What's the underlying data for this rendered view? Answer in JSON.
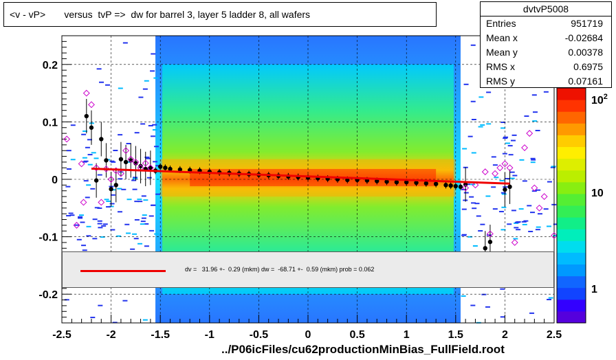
{
  "title": "<v - vP>       versus  tvP =>  dw for barrel 3, layer 5 ladder 8, all wafers",
  "stats": {
    "name": "dvtvP5008",
    "rows": [
      {
        "label": "Entries",
        "value": "951719"
      },
      {
        "label": "Mean x",
        "value": "-0.02684"
      },
      {
        "label": "Mean y",
        "value": "0.00378"
      },
      {
        "label": "RMS x",
        "value": "0.6975"
      },
      {
        "label": "RMS y",
        "value": "0.07161"
      }
    ]
  },
  "fit_text": "dv =   31.96 +-  0.29 (mkm) dw =  -68.71 +-  0.59 (mkm) prob = 0.062",
  "footer": "../P06icFiles/cu62productionMinBias_FullField.root",
  "colors": {
    "fit_line": "#ee0000",
    "profile_marker": "#000000",
    "open_marker": "#cc00cc"
  },
  "chart_data": {
    "type": "heatmap",
    "xlim": [
      -2.5,
      2.5
    ],
    "ylim": [
      -0.25,
      0.25
    ],
    "x_ticks": [
      "-2.5",
      "-2",
      "-1.5",
      "-1",
      "-0.5",
      "0",
      "0.5",
      "1",
      "1.5",
      "2",
      "2.5"
    ],
    "y_ticks": [
      "-0.2",
      "-0.1",
      "0",
      "0.1",
      "0.2"
    ],
    "color_scale": {
      "type": "log",
      "labels": [
        "1",
        "10",
        "10^2"
      ]
    },
    "grid": true,
    "fit": {
      "x": [
        -2.2,
        2.05
      ],
      "y": [
        0.0185,
        -0.0075
      ]
    },
    "profile": {
      "x": [
        -2.25,
        -2.2,
        -2.15,
        -2.1,
        -2.05,
        -2.0,
        -1.95,
        -1.9,
        -1.85,
        -1.8,
        -1.75,
        -1.7,
        -1.65,
        -1.6,
        -1.55,
        -1.5,
        -1.45,
        -1.4,
        -1.3,
        -1.2,
        -1.1,
        -1.0,
        -0.9,
        -0.8,
        -0.7,
        -0.6,
        -0.5,
        -0.4,
        -0.3,
        -0.2,
        -0.1,
        0.0,
        0.1,
        0.2,
        0.3,
        0.4,
        0.5,
        0.6,
        0.7,
        0.8,
        0.9,
        1.0,
        1.1,
        1.2,
        1.3,
        1.4,
        1.45,
        1.5,
        1.55,
        1.6,
        1.8,
        1.85,
        2.0,
        2.05
      ],
      "y": [
        0.11,
        0.09,
        -0.002,
        0.07,
        0.033,
        -0.017,
        -0.01,
        0.035,
        0.03,
        0.033,
        0.028,
        0.023,
        0.018,
        0.02,
        0.015,
        0.022,
        0.02,
        0.018,
        0.017,
        0.016,
        0.015,
        0.013,
        0.012,
        0.011,
        0.01,
        0.009,
        0.008,
        0.007,
        0.006,
        0.005,
        0.004,
        0.003,
        0.002,
        0.001,
        0.0,
        -0.001,
        -0.001,
        -0.002,
        -0.003,
        -0.004,
        -0.005,
        -0.005,
        -0.006,
        -0.007,
        -0.008,
        -0.01,
        -0.011,
        -0.012,
        -0.013,
        -0.009,
        -0.12,
        -0.109,
        -0.018,
        -0.013
      ]
    },
    "open_points": {
      "x": [
        -2.45,
        -2.35,
        -2.3,
        -2.28,
        -2.25,
        -2.2,
        -2.15,
        -2.1,
        -2.05,
        -2.0,
        -1.95,
        -1.9,
        -1.85,
        -1.8,
        -1.75,
        -1.7,
        -1.65,
        -1.6,
        1.6,
        1.7,
        1.8,
        1.85,
        1.9,
        1.95,
        2.0,
        2.05,
        2.1,
        2.2,
        2.25,
        2.3,
        2.35,
        2.4,
        2.5
      ],
      "y": [
        0.07,
        -0.08,
        0.027,
        -0.04,
        0.15,
        0.13,
        0.02,
        -0.04,
        0.018,
        0.0,
        0.015,
        0.01,
        0.05,
        0.035,
        0.03,
        0.02,
        0.028,
        0.02,
        -0.015,
        -0.01,
        0.013,
        -0.095,
        0.01,
        0.02,
        0.027,
        0.02,
        -0.11,
        0.055,
        0.08,
        -0.015,
        -0.05,
        -0.03,
        -0.098
      ]
    }
  }
}
